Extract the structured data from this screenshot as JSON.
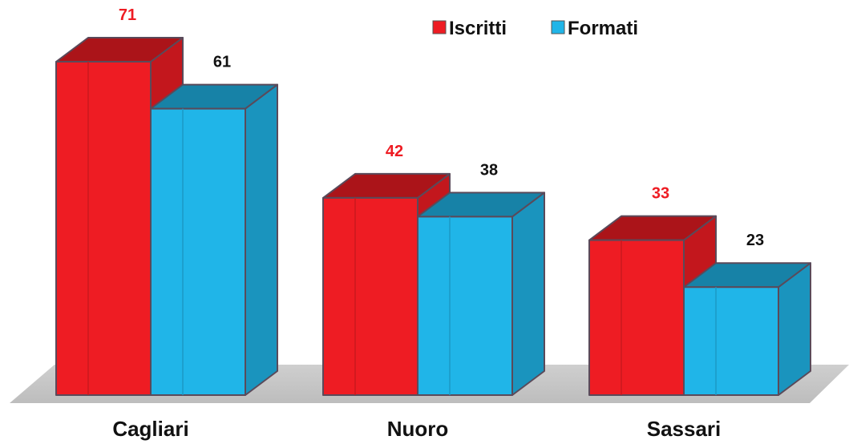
{
  "chart_data": {
    "type": "bar",
    "style": "3d-clustered-column",
    "categories": [
      "Cagliari",
      "Nuoro",
      "Sassari"
    ],
    "series": [
      {
        "name": "Iscritti",
        "values": [
          71,
          42,
          33
        ],
        "color": "#ee1c23",
        "label_color": "#ee1c23"
      },
      {
        "name": "Formati",
        "values": [
          61,
          38,
          23
        ],
        "color": "#20b5e8",
        "label_color": "#111111"
      }
    ],
    "title": "",
    "xlabel": "",
    "ylabel": "",
    "ylim": [
      0,
      71
    ],
    "grid": false,
    "legend": "top-right",
    "data_labels": true
  }
}
